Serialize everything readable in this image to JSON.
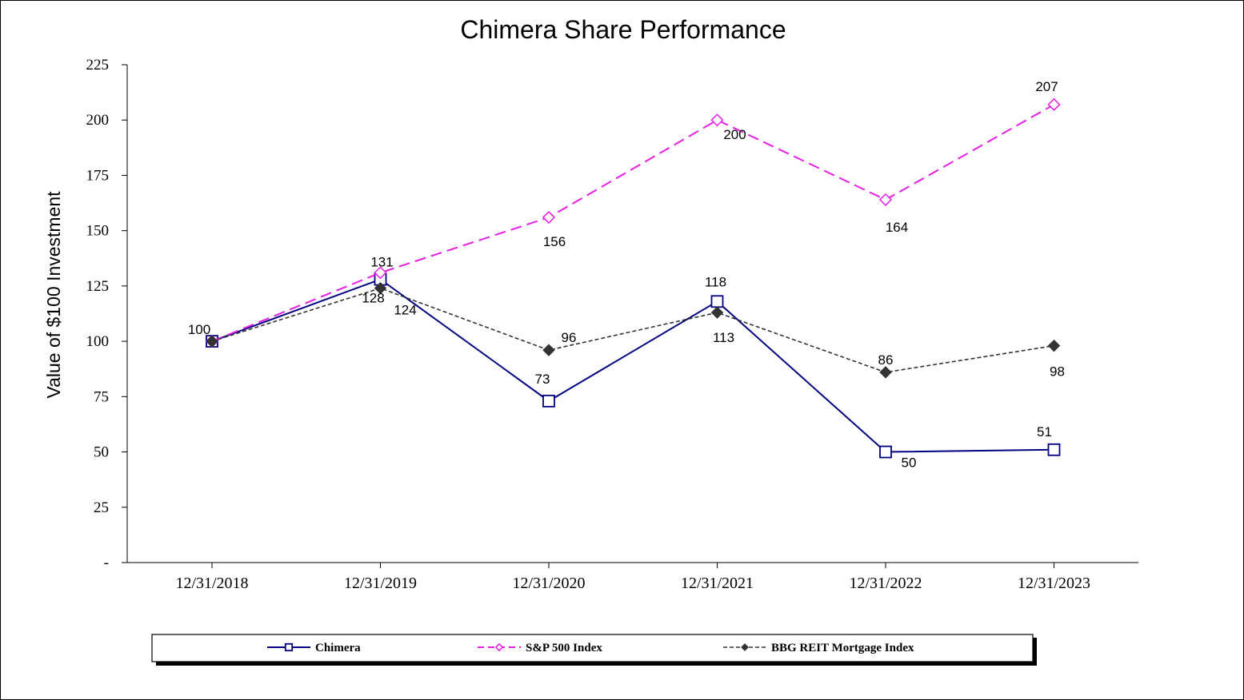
{
  "chart_data": {
    "type": "line",
    "title": "Chimera Share Performance",
    "xlabel": "",
    "ylabel": "Value of $100 Investment",
    "categories": [
      "12/31/2018",
      "12/31/2019",
      "12/31/2020",
      "12/31/2021",
      "12/31/2022",
      "12/31/2023"
    ],
    "ylim": [
      0,
      225
    ],
    "yticks": [
      {
        "value": 0,
        "label": "-"
      },
      {
        "value": 25,
        "label": "25"
      },
      {
        "value": 50,
        "label": "50"
      },
      {
        "value": 75,
        "label": "75"
      },
      {
        "value": 100,
        "label": "100"
      },
      {
        "value": 125,
        "label": "125"
      },
      {
        "value": 150,
        "label": "150"
      },
      {
        "value": 175,
        "label": "175"
      },
      {
        "value": 200,
        "label": "200"
      },
      {
        "value": 225,
        "label": "225"
      }
    ],
    "grid": false,
    "legend_position": "bottom",
    "series": [
      {
        "name": "Chimera",
        "values": [
          100,
          128,
          73,
          118,
          50,
          51
        ],
        "labels": [
          "",
          "128",
          "73",
          "118",
          "50",
          "51"
        ],
        "color": "#000080",
        "marker": "square-open",
        "style": "solid"
      },
      {
        "name": "S&P 500 Index",
        "values": [
          100,
          131,
          156,
          200,
          164,
          207
        ],
        "labels": [
          "100",
          "131",
          "156",
          "200",
          "164",
          "207"
        ],
        "color": "#e61ee6",
        "marker": "diamond-open",
        "style": "dashed"
      },
      {
        "name": "BBG REIT Mortgage Index",
        "values": [
          100,
          124,
          96,
          113,
          86,
          98
        ],
        "labels": [
          "",
          "124",
          "96",
          "113",
          "86",
          "98"
        ],
        "color": "#333333",
        "marker": "diamond-filled",
        "style": "dotted"
      }
    ]
  }
}
